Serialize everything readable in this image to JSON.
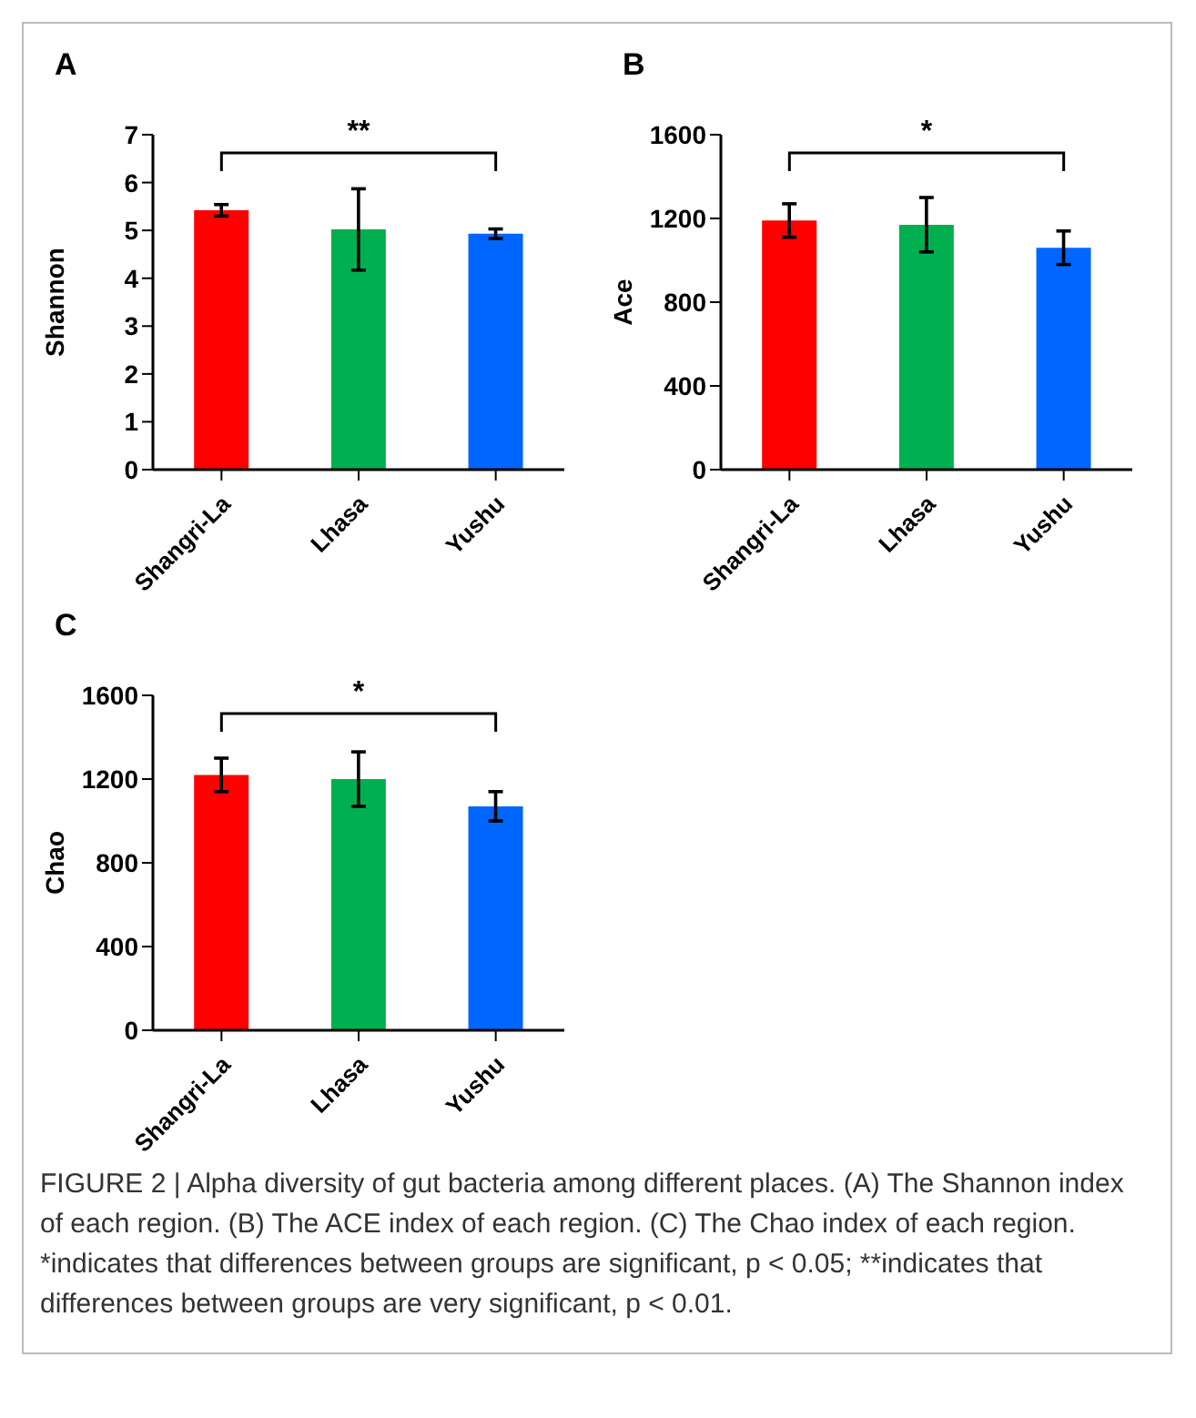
{
  "chart_data": [
    {
      "type": "bar",
      "title": "A",
      "ylabel": "Shannon",
      "categories": [
        "Shangri-La",
        "Lhasa",
        "Yushu"
      ],
      "values": [
        5.42,
        5.02,
        4.93
      ],
      "errors": [
        0.12,
        0.85,
        0.1
      ],
      "colors": [
        "#ff0000",
        "#00b050",
        "#0066ff"
      ],
      "ylim": [
        0,
        7
      ],
      "yticks": [
        0,
        1,
        2,
        3,
        4,
        5,
        6,
        7
      ],
      "annotations": [
        "**"
      ]
    },
    {
      "type": "bar",
      "title": "B",
      "ylabel": "Ace",
      "categories": [
        "Shangri-La",
        "Lhasa",
        "Yushu"
      ],
      "values": [
        1190,
        1170,
        1060
      ],
      "errors": [
        80,
        130,
        80
      ],
      "colors": [
        "#ff0000",
        "#00b050",
        "#0066ff"
      ],
      "ylim": [
        0,
        1600
      ],
      "yticks": [
        0,
        400,
        800,
        1200,
        1600
      ],
      "annotations": [
        "*"
      ]
    },
    {
      "type": "bar",
      "title": "C",
      "ylabel": "Chao",
      "categories": [
        "Shangri-La",
        "Lhasa",
        "Yushu"
      ],
      "values": [
        1220,
        1200,
        1070
      ],
      "errors": [
        80,
        130,
        70
      ],
      "colors": [
        "#ff0000",
        "#00b050",
        "#0066ff"
      ],
      "ylim": [
        0,
        1600
      ],
      "yticks": [
        0,
        400,
        800,
        1200,
        1600
      ],
      "annotations": [
        "*",
        "FIGURE 2 | Alpha diversity of gut bacteria among different places. (A) The Shannon index of each region. (B) The ACE index of each region. (C) The Chao index of each region. *indicates that differences between groups are significant, p < 0.05; **indicates that differences between groups are very significant, p < 0.01."
      ]
    }
  ]
}
